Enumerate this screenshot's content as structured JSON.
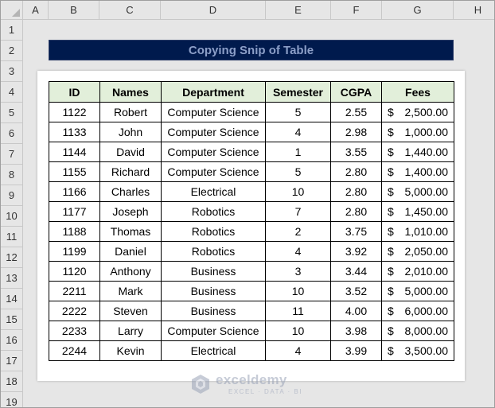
{
  "sheet": {
    "columns": [
      "A",
      "B",
      "C",
      "D",
      "E",
      "F",
      "G",
      "H"
    ],
    "rows": [
      "1",
      "2",
      "3",
      "4",
      "5",
      "6",
      "7",
      "8",
      "9",
      "10",
      "11",
      "12",
      "13",
      "14",
      "15",
      "16",
      "17",
      "18",
      "19"
    ]
  },
  "title": "Copying Snip of Table",
  "table": {
    "headers": [
      "ID",
      "Names",
      "Department",
      "Semester",
      "CGPA",
      "Fees"
    ],
    "currency_symbol": "$",
    "rows": [
      {
        "id": "1122",
        "name": "Robert",
        "department": "Computer Science",
        "semester": "5",
        "cgpa": "2.55",
        "fees": "2,500.00"
      },
      {
        "id": "1133",
        "name": "John",
        "department": "Computer Science",
        "semester": "4",
        "cgpa": "2.98",
        "fees": "1,000.00"
      },
      {
        "id": "1144",
        "name": "David",
        "department": "Computer Science",
        "semester": "1",
        "cgpa": "3.55",
        "fees": "1,440.00"
      },
      {
        "id": "1155",
        "name": "Richard",
        "department": "Computer Science",
        "semester": "5",
        "cgpa": "2.80",
        "fees": "1,400.00"
      },
      {
        "id": "1166",
        "name": "Charles",
        "department": "Electrical",
        "semester": "10",
        "cgpa": "2.80",
        "fees": "5,000.00"
      },
      {
        "id": "1177",
        "name": "Joseph",
        "department": "Robotics",
        "semester": "7",
        "cgpa": "2.80",
        "fees": "1,450.00"
      },
      {
        "id": "1188",
        "name": "Thomas",
        "department": "Robotics",
        "semester": "2",
        "cgpa": "3.75",
        "fees": "1,010.00"
      },
      {
        "id": "1199",
        "name": "Daniel",
        "department": "Robotics",
        "semester": "4",
        "cgpa": "3.92",
        "fees": "2,050.00"
      },
      {
        "id": "1120",
        "name": "Anthony",
        "department": "Business",
        "semester": "3",
        "cgpa": "3.44",
        "fees": "2,010.00"
      },
      {
        "id": "2211",
        "name": "Mark",
        "department": "Business",
        "semester": "10",
        "cgpa": "3.52",
        "fees": "5,000.00"
      },
      {
        "id": "2222",
        "name": "Steven",
        "department": "Business",
        "semester": "11",
        "cgpa": "4.00",
        "fees": "6,000.00"
      },
      {
        "id": "2233",
        "name": "Larry",
        "department": "Computer Science",
        "semester": "10",
        "cgpa": "3.98",
        "fees": "8,000.00"
      },
      {
        "id": "2244",
        "name": "Kevin",
        "department": "Electrical",
        "semester": "4",
        "cgpa": "3.99",
        "fees": "3,500.00"
      }
    ]
  },
  "watermark": {
    "name": "exceldemy",
    "tagline": "EXCEL · DATA · BI",
    "icon": "exceldemy-logo-icon"
  },
  "colors": {
    "title_bg": "#001a4d",
    "title_text": "#8c9fc8",
    "header_bg": "#e2efda",
    "sheet_bg": "#e6e6e6"
  }
}
